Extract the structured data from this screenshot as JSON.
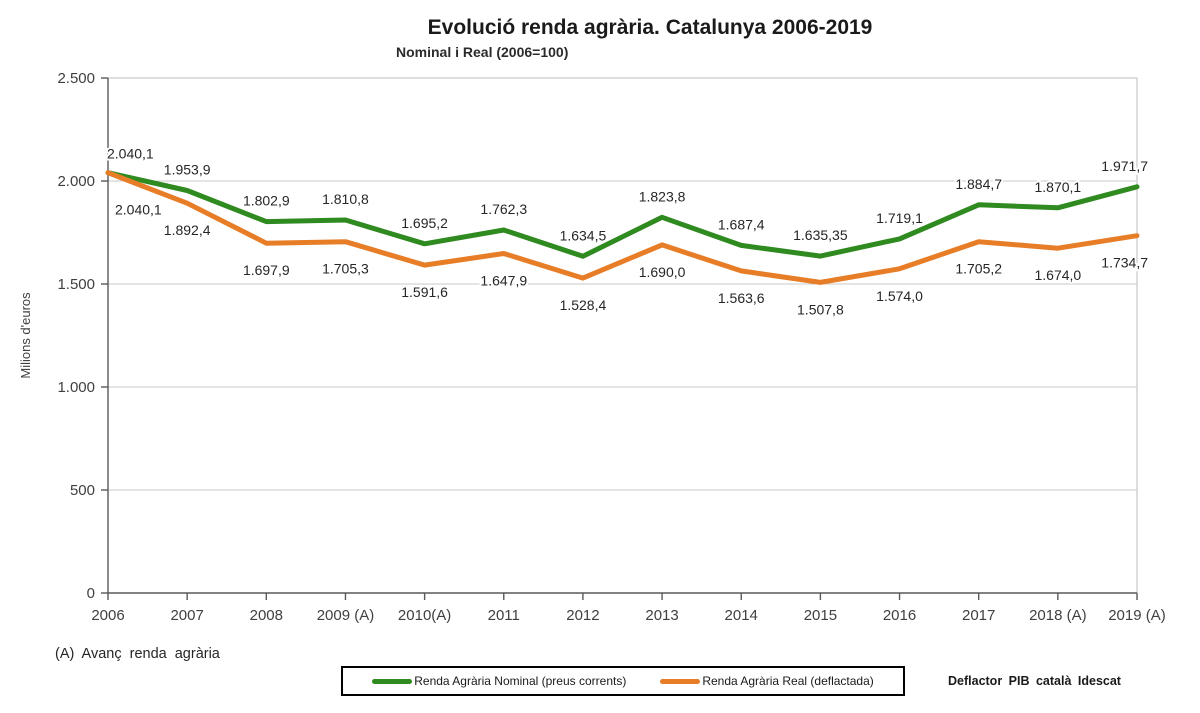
{
  "colors": {
    "nominal": "#2f8a20",
    "real": "#e87d27",
    "grid": "#c9c9c9",
    "plot_border": "#bdbdbd",
    "axis": "#595959",
    "tick_text": "#404040",
    "data_label": "#262626"
  },
  "chart_data": {
    "type": "line",
    "title": "Evolució renda agrària. Catalunya 2006-2019",
    "subtitle": "Nominal i Real (2006=100)",
    "ylabel": "Milions d'euros",
    "xlabel": "",
    "ylim": [
      0,
      2500
    ],
    "ytick_values": [
      0,
      500,
      1000,
      1500,
      2000,
      2500
    ],
    "ytick_labels": [
      "0",
      "500",
      "1.000",
      "1.500",
      "2.000",
      "2.500"
    ],
    "grid": true,
    "legend_position": "bottom",
    "categories": [
      "2006",
      "2007",
      "2008",
      "2009 (A)",
      "2010(A)",
      "2011",
      "2012",
      "2013",
      "2014",
      "2015",
      "2016",
      "2017",
      "2018 (A)",
      "2019 (A)"
    ],
    "series": [
      {
        "name": "Renda Agrària Nominal (preus corrents)",
        "color_key": "nominal",
        "values": [
          2040.1,
          1953.9,
          1802.9,
          1810.8,
          1695.2,
          1762.3,
          1634.5,
          1823.8,
          1687.4,
          1635.35,
          1719.1,
          1884.7,
          1870.1,
          1971.7
        ],
        "labels": [
          "2.040,1",
          "1.953,9",
          "1.802,9",
          "1.810,8",
          "1.695,2",
          "1.762,3",
          "1.634,5",
          "1.823,8",
          "1.687,4",
          "1.635,35",
          "1.719,1",
          "1.884,7",
          "1.870,1",
          "1.971,7"
        ]
      },
      {
        "name": "Renda Agrària Real (deflactada)",
        "color_key": "real",
        "values": [
          2040.1,
          1892.4,
          1697.9,
          1705.3,
          1591.6,
          1647.9,
          1528.4,
          1690.0,
          1563.6,
          1507.8,
          1574.0,
          1705.2,
          1674.0,
          1734.7
        ],
        "labels": [
          "2.040,1",
          "1.892,4",
          "1.697,9",
          "1.705,3",
          "1.591,6",
          "1.647,9",
          "1.528,4",
          "1.690,0",
          "1.563,6",
          "1.507,8",
          "1.574,0",
          "1.705,2",
          "1.674,0",
          "1.734,7"
        ]
      }
    ]
  },
  "footnote": "(A) Avanç renda agrària",
  "source_note": "Deflactor PIB català Idescat"
}
